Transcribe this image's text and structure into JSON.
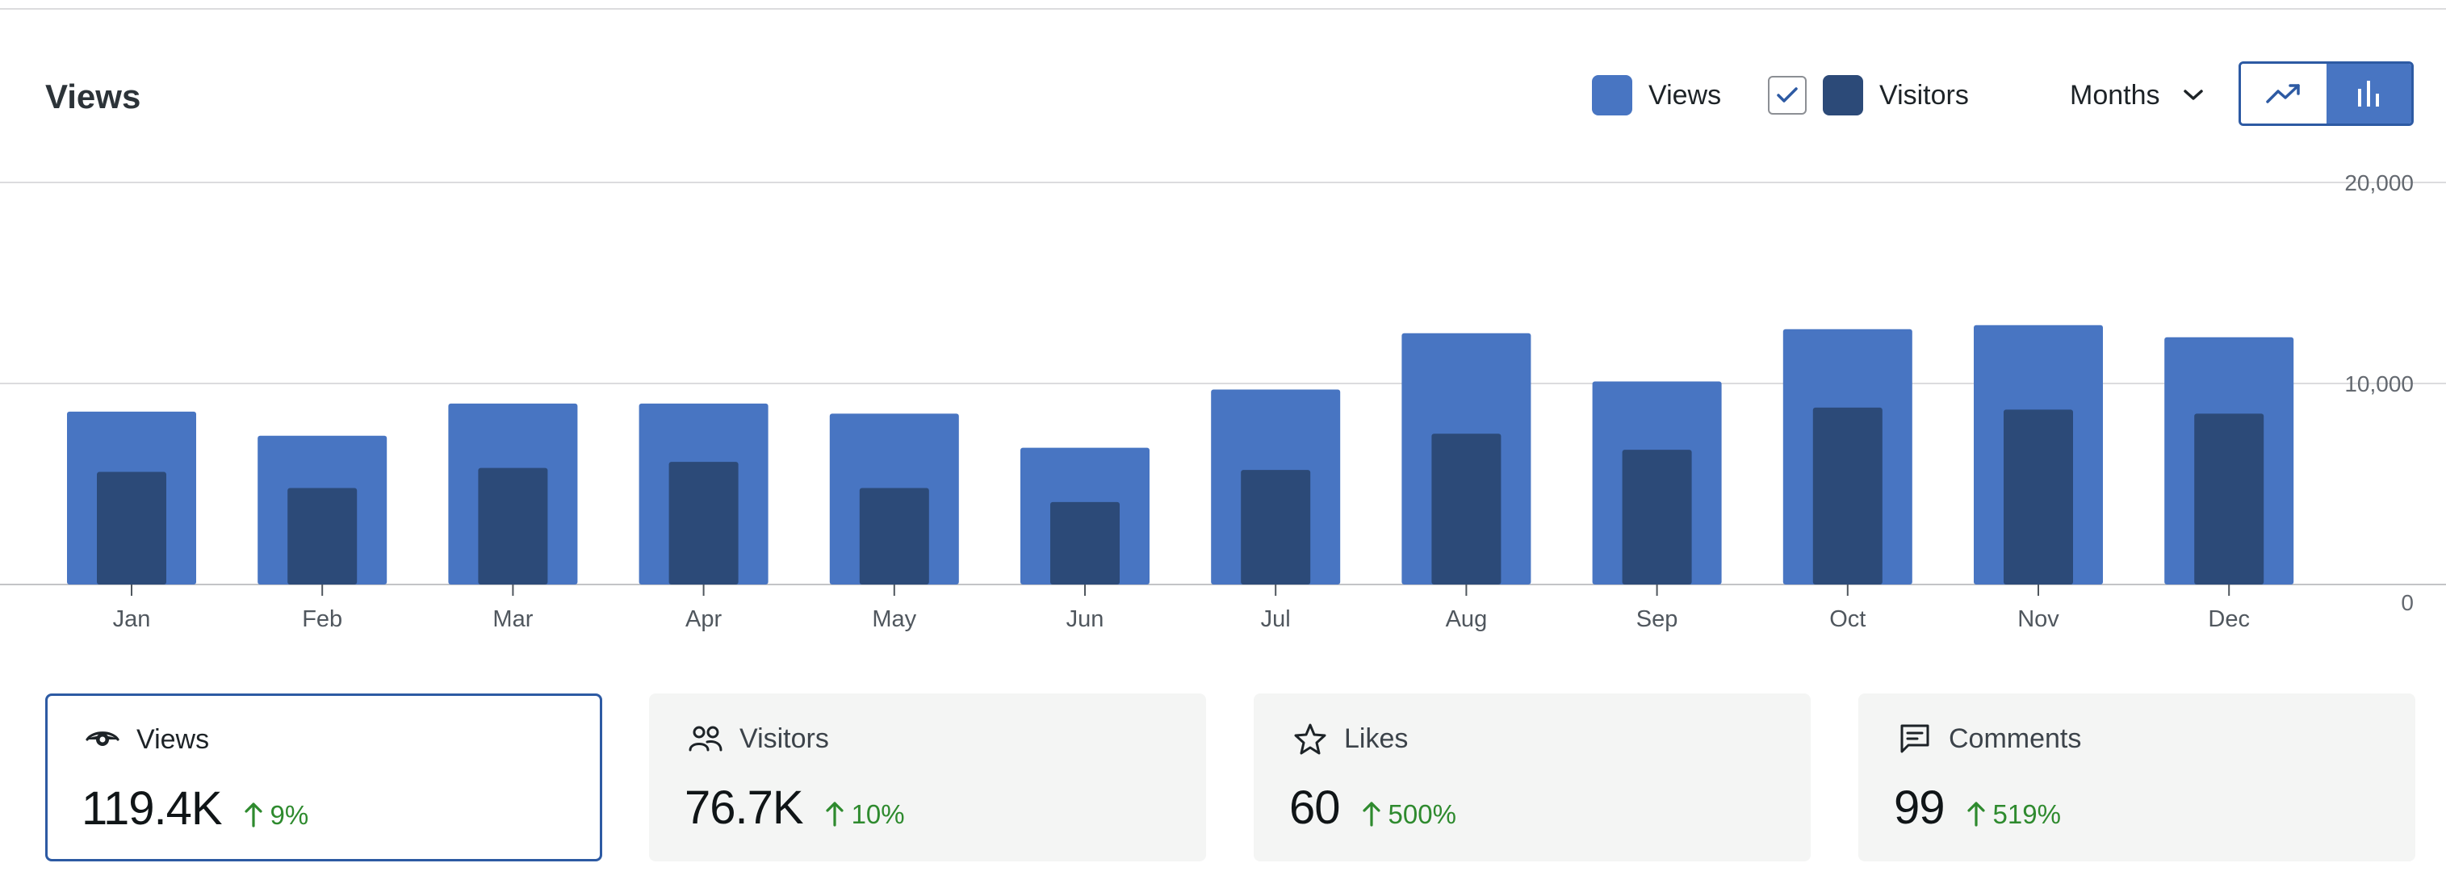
{
  "header": {
    "title": "Views"
  },
  "legend": {
    "views_label": "Views",
    "visitors_label": "Visitors",
    "visitors_checked": true,
    "views_color": "#4875c2",
    "visitors_color": "#2c4a78"
  },
  "period_select": {
    "selected": "Months"
  },
  "chart_toggle": {
    "options": [
      "line-chart-icon",
      "bar-chart-icon"
    ],
    "selected": "bar-chart-icon"
  },
  "chart_data": {
    "type": "bar",
    "categories": [
      "Jan",
      "Feb",
      "Mar",
      "Apr",
      "May",
      "Jun",
      "Jul",
      "Aug",
      "Sep",
      "Oct",
      "Nov",
      "Dec"
    ],
    "series": [
      {
        "name": "Views",
        "values": [
          8600,
          7400,
          9000,
          9000,
          8500,
          6800,
          9700,
          12500,
          10100,
          12700,
          12900,
          12300
        ],
        "color": "#4875c2"
      },
      {
        "name": "Visitors",
        "values": [
          5600,
          4800,
          5800,
          6100,
          4800,
          4100,
          5700,
          7500,
          6700,
          8800,
          8700,
          8500
        ],
        "color": "#2c4a78"
      }
    ],
    "yticks": [
      "20,000",
      "10,000",
      "0"
    ],
    "ylim": [
      0,
      20000
    ],
    "grid": true,
    "legend_position": "top-right"
  },
  "stats": [
    {
      "label": "Views",
      "value": "119.4K",
      "delta": "9%",
      "icon": "eye-icon",
      "active": true
    },
    {
      "label": "Visitors",
      "value": "76.7K",
      "delta": "10%",
      "icon": "people-icon",
      "active": false
    },
    {
      "label": "Likes",
      "value": "60",
      "delta": "500%",
      "icon": "star-icon",
      "active": false
    },
    {
      "label": "Comments",
      "value": "99",
      "delta": "519%",
      "icon": "comment-icon",
      "active": false
    }
  ],
  "colors": {
    "accent": "#2d5aa3",
    "positive": "#2e8a2e",
    "card_bg": "#f4f5f4"
  }
}
